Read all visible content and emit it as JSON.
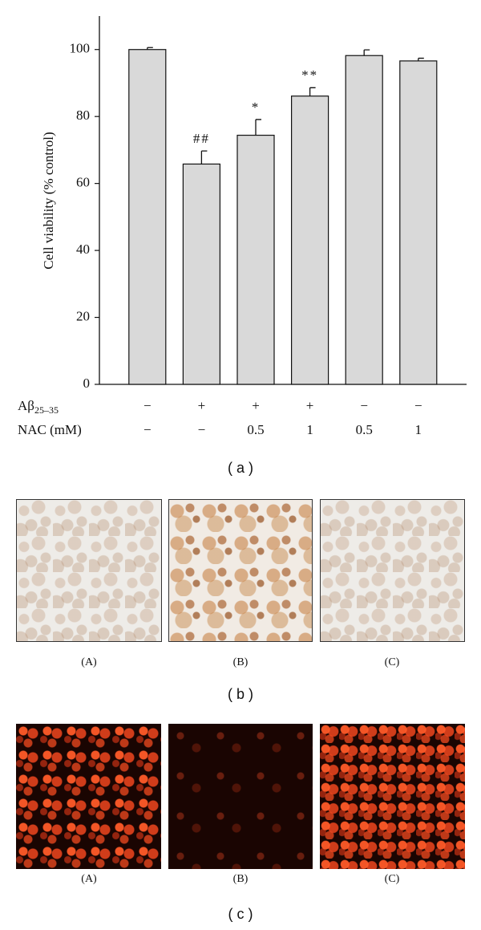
{
  "chart_data": {
    "type": "bar",
    "y_label": "Cell viability (% control)",
    "values": [
      100,
      65.8,
      74.4,
      86.1,
      98.2,
      96.6
    ],
    "errors": [
      0.6,
      3.9,
      4.7,
      2.5,
      1.7,
      0.8
    ],
    "annotations": [
      null,
      "##",
      "*",
      "**",
      null,
      null
    ],
    "treatment_rows": [
      {
        "label": "Aβ",
        "subscript": "25–35",
        "values": [
          "−",
          "+",
          "+",
          "+",
          "−",
          "−"
        ]
      },
      {
        "label": "NAC (mM)",
        "values": [
          "−",
          "−",
          "0.5",
          "1",
          "0.5",
          "1"
        ]
      }
    ],
    "color": "#d9d9d9",
    "ylim": [
      0,
      110
    ],
    "yticks": [
      0,
      20,
      40,
      60,
      80,
      100
    ],
    "caption": "( a )"
  },
  "panel_b": {
    "labels": [
      "(A)",
      "(B)",
      "(C)"
    ],
    "caption": "( b )"
  },
  "panel_c": {
    "labels": [
      "(A)",
      "(B)",
      "(C)"
    ],
    "caption": "( c )"
  }
}
